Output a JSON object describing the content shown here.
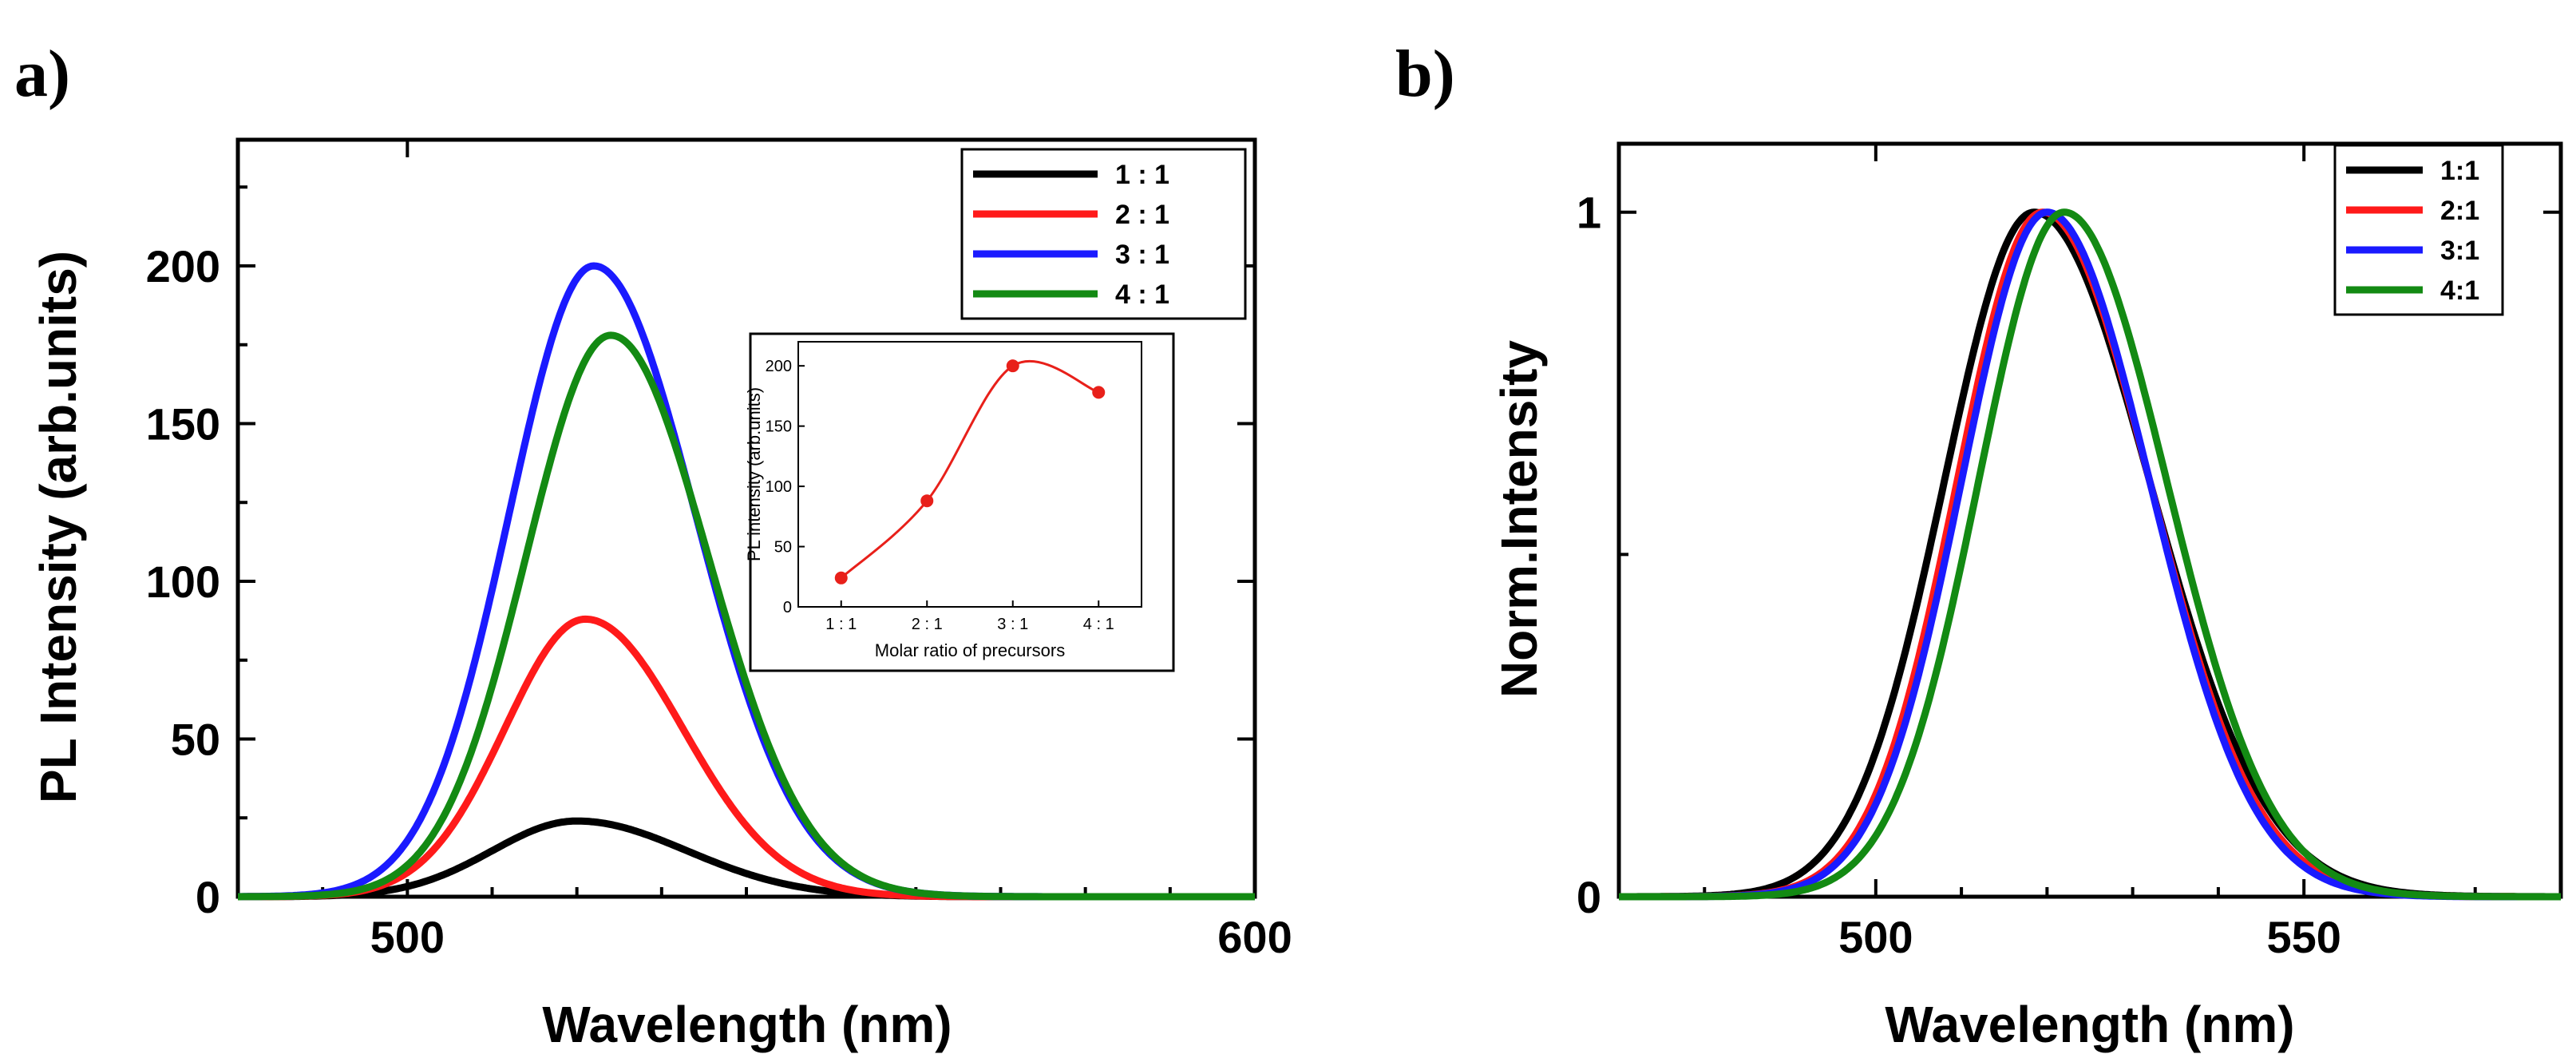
{
  "panels": {
    "a": {
      "label": "a)"
    },
    "b": {
      "label": "b)"
    }
  },
  "colors": {
    "1:1": "#000000",
    "2:1": "#ff1a1a",
    "3:1": "#1a1aff",
    "4:1": "#138a13"
  },
  "chart_data": [
    {
      "id": "panel-a",
      "type": "line",
      "xlabel": "Wavelength (nm)",
      "ylabel": "PL Intensity (arb.units)",
      "xlim": [
        480,
        600
      ],
      "ylim": [
        0,
        240
      ],
      "xticks": [
        500,
        600
      ],
      "yticks": [
        0,
        50,
        100,
        150,
        200
      ],
      "legend_position": "top-right",
      "series": [
        {
          "name": "1 : 1",
          "color": "#000000",
          "peak_x": 520,
          "peak_y": 24,
          "sigma_left": 10,
          "sigma_right": 13
        },
        {
          "name": "2 : 1",
          "color": "#ff1a1a",
          "peak_x": 521,
          "peak_y": 88,
          "sigma_left": 9.5,
          "sigma_right": 11.5
        },
        {
          "name": "3 : 1",
          "color": "#1a1aff",
          "peak_x": 522,
          "peak_y": 200,
          "sigma_left": 10,
          "sigma_right": 12
        },
        {
          "name": "4 : 1",
          "color": "#138a13",
          "peak_x": 524,
          "peak_y": 178,
          "sigma_left": 10,
          "sigma_right": 11.5
        }
      ],
      "inset": {
        "type": "scatter",
        "xlabel": "Molar ratio of precursors",
        "ylabel": "PL intensity (arb.units)",
        "categories": [
          "1 : 1",
          "2 : 1",
          "3 : 1",
          "4 : 1"
        ],
        "values": [
          24,
          88,
          200,
          178
        ],
        "ylim": [
          0,
          220
        ],
        "yticks": [
          0,
          50,
          100,
          150,
          200
        ],
        "color": "#e8201a"
      }
    },
    {
      "id": "panel-b",
      "type": "line",
      "xlabel": "Wavelength (nm)",
      "ylabel": "Norm.Intensity",
      "xlim": [
        470,
        580
      ],
      "ylim": [
        0,
        1.1
      ],
      "xticks": [
        500,
        550
      ],
      "yticks": [
        0,
        1
      ],
      "legend_position": "top-right",
      "series": [
        {
          "name": "1:1",
          "color": "#000000",
          "peak_x": 518.5,
          "peak_y": 1,
          "sigma_left": 10.5,
          "sigma_right": 13.5
        },
        {
          "name": "2:1",
          "color": "#ff1a1a",
          "peak_x": 519.5,
          "peak_y": 1,
          "sigma_left": 10,
          "sigma_right": 12.5
        },
        {
          "name": "3:1",
          "color": "#1a1aff",
          "peak_x": 520,
          "peak_y": 1,
          "sigma_left": 10,
          "sigma_right": 12
        },
        {
          "name": "4:1",
          "color": "#138a13",
          "peak_x": 522,
          "peak_y": 1,
          "sigma_left": 10,
          "sigma_right": 12
        }
      ]
    }
  ]
}
